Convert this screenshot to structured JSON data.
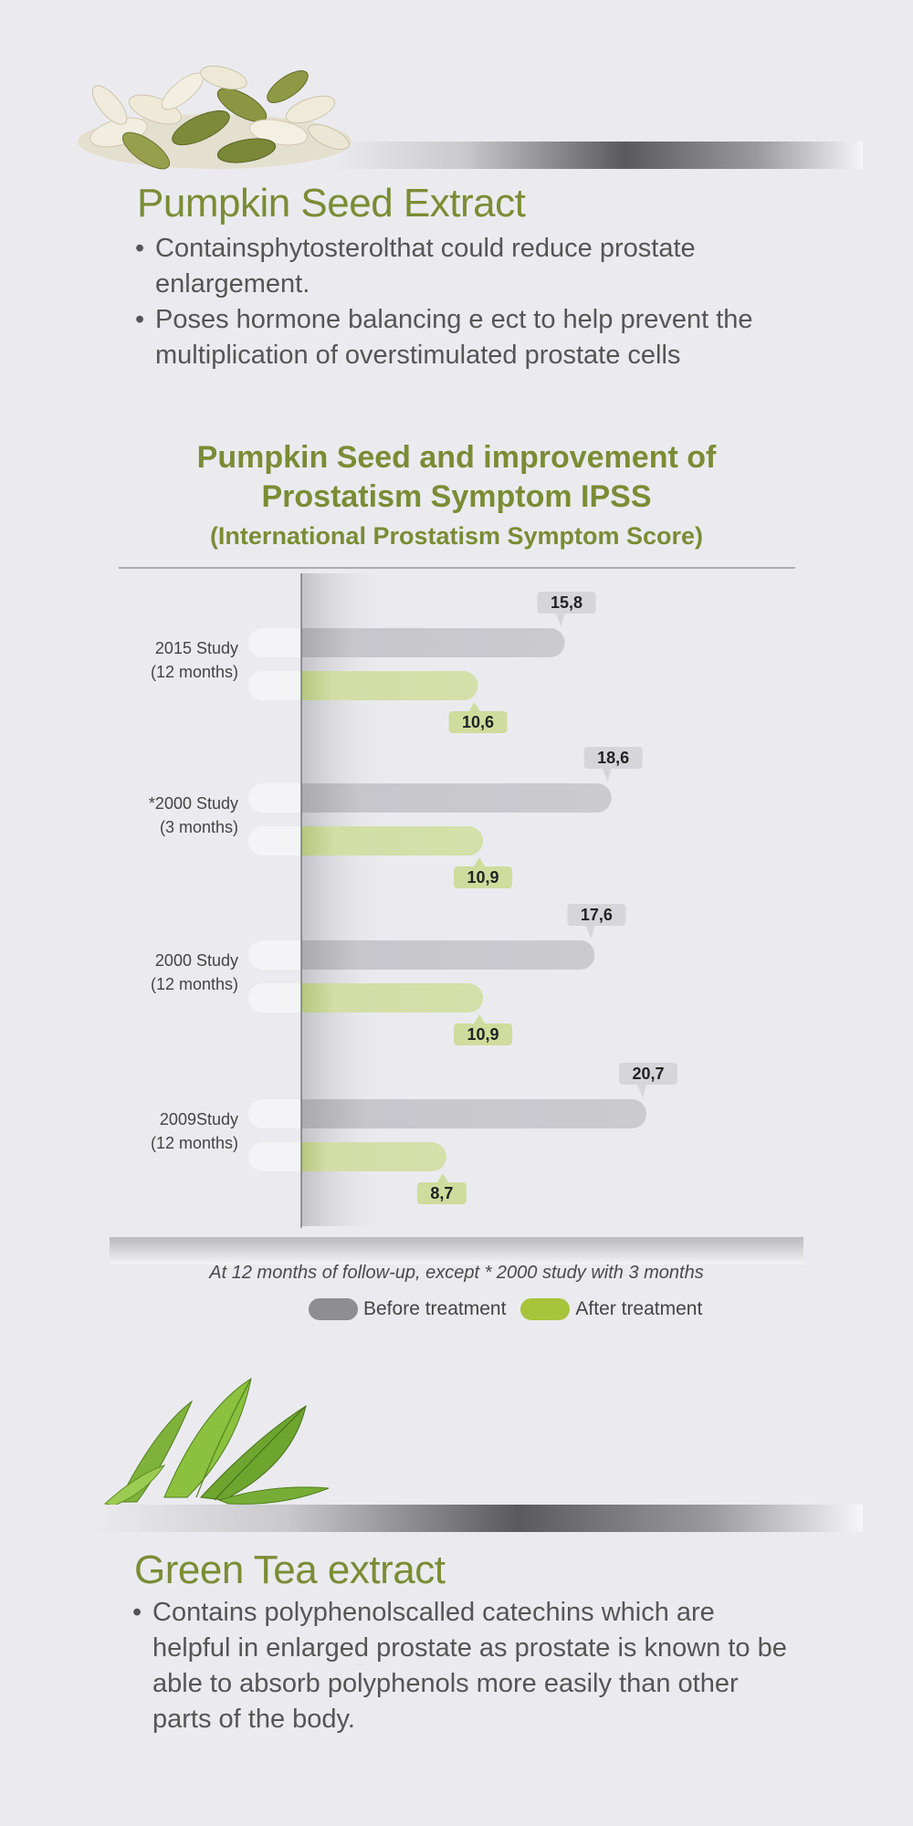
{
  "pumpkin": {
    "title": "Pumpkin Seed Extract",
    "bullets": [
      "Containsphytosterolthat could reduce prostate enlargement.",
      "Poses hormone balancing e ect to help prevent the multiplication of overstimulated prostate cells"
    ]
  },
  "chart_data": {
    "type": "bar",
    "orientation": "horizontal",
    "title_line1": "Pumpkin Seed and improvement of",
    "title_line2": "Prostatism Symptom IPSS",
    "subtitle": "(International Prostatism Symptom Score)",
    "categories": [
      [
        "2015 Study",
        "(12 months)"
      ],
      [
        "*2000 Study",
        "(3 months)"
      ],
      [
        "2000 Study",
        "(12 months)"
      ],
      [
        "2009Study",
        "(12 months)"
      ]
    ],
    "series": [
      {
        "name": "Before treatment",
        "color": "#c8c8cd",
        "legend_color": "#8e8e91",
        "values": [
          15.8,
          18.6,
          17.6,
          20.7
        ],
        "labels": [
          "15,8",
          "18,6",
          "17,6",
          "20,7"
        ]
      },
      {
        "name": "After treatment",
        "color": "#d2dea6",
        "legend_color": "#a8c43a",
        "values": [
          10.6,
          10.9,
          10.9,
          8.7
        ],
        "labels": [
          "10,6",
          "10,9",
          "10,9",
          "8,7"
        ]
      }
    ],
    "xlim": [
      0,
      20.7
    ],
    "footnote": "At 12 months of follow-up, except * 2000 study with 3 months",
    "legend": "bottom-center"
  },
  "greentea": {
    "title": "Green Tea extract",
    "bullets": [
      "Contains polyphenolscalled catechins which are helpful in enlarged prostate as prostate is known to be able to absorb polyphenols more easily than other parts of the body."
    ]
  },
  "images": {
    "top": "pumpkin-seeds-image",
    "bottom": "green-tea-leaves-image"
  }
}
